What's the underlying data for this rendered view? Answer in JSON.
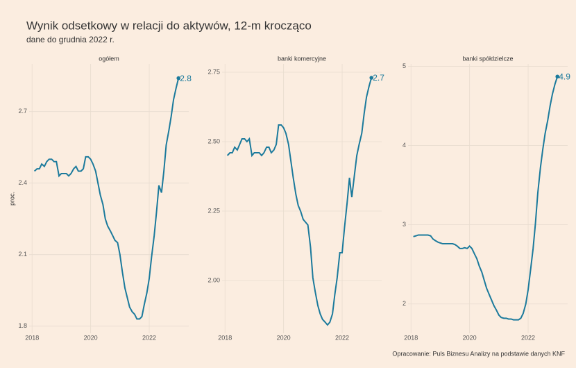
{
  "title": "Wynik odsetkowy w relacji do aktywów, 12-m krocząco",
  "subtitle": "dane do grudnia 2022 r.",
  "y_label": "proc.",
  "caption": "Opracowanie: Puls Biznesu Analizy na podstawie danych KNF",
  "chart_data": [
    {
      "type": "line",
      "title": "ogółem",
      "color": "#1b7a9c",
      "grid": true,
      "x": [
        2018.08,
        2018.17,
        2018.25,
        2018.33,
        2018.42,
        2018.5,
        2018.58,
        2018.67,
        2018.75,
        2018.83,
        2018.92,
        2019,
        2019.08,
        2019.17,
        2019.25,
        2019.33,
        2019.42,
        2019.5,
        2019.58,
        2019.67,
        2019.75,
        2019.83,
        2019.92,
        2020,
        2020.08,
        2020.17,
        2020.25,
        2020.33,
        2020.42,
        2020.5,
        2020.58,
        2020.67,
        2020.75,
        2020.83,
        2020.92,
        2021,
        2021.08,
        2021.17,
        2021.25,
        2021.33,
        2021.42,
        2021.5,
        2021.58,
        2021.67,
        2021.75,
        2021.83,
        2021.92,
        2022,
        2022.08,
        2022.17,
        2022.25,
        2022.33,
        2022.42,
        2022.5,
        2022.58,
        2022.67,
        2022.75,
        2022.83,
        2022.92,
        2023
      ],
      "values": [
        2.45,
        2.46,
        2.46,
        2.48,
        2.47,
        2.49,
        2.5,
        2.5,
        2.49,
        2.49,
        2.43,
        2.44,
        2.44,
        2.44,
        2.43,
        2.44,
        2.46,
        2.47,
        2.45,
        2.45,
        2.46,
        2.51,
        2.51,
        2.5,
        2.48,
        2.45,
        2.4,
        2.35,
        2.31,
        2.25,
        2.22,
        2.2,
        2.18,
        2.16,
        2.15,
        2.1,
        2.03,
        1.96,
        1.92,
        1.88,
        1.86,
        1.85,
        1.83,
        1.83,
        1.84,
        1.89,
        1.94,
        2.0,
        2.09,
        2.18,
        2.28,
        2.39,
        2.36,
        2.45,
        2.56,
        2.62,
        2.68,
        2.75,
        2.8,
        2.84
      ],
      "end_label": "2.8",
      "xlim": [
        2017.9,
        2023.35
      ],
      "xticks": [
        2018,
        2020,
        2022
      ],
      "ylim": [
        1.77,
        2.9
      ],
      "yticks": [
        1.8,
        2.1,
        2.4,
        2.7
      ]
    },
    {
      "type": "line",
      "title": "banki komercyjne",
      "color": "#1b7a9c",
      "grid": true,
      "x": [
        2018.08,
        2018.17,
        2018.25,
        2018.33,
        2018.42,
        2018.5,
        2018.58,
        2018.67,
        2018.75,
        2018.83,
        2018.92,
        2019,
        2019.08,
        2019.17,
        2019.25,
        2019.33,
        2019.42,
        2019.5,
        2019.58,
        2019.67,
        2019.75,
        2019.83,
        2019.92,
        2020,
        2020.08,
        2020.17,
        2020.25,
        2020.33,
        2020.42,
        2020.5,
        2020.58,
        2020.67,
        2020.75,
        2020.83,
        2020.92,
        2021,
        2021.08,
        2021.17,
        2021.25,
        2021.33,
        2021.42,
        2021.5,
        2021.58,
        2021.67,
        2021.75,
        2021.83,
        2021.92,
        2022,
        2022.08,
        2022.17,
        2022.25,
        2022.33,
        2022.42,
        2022.5,
        2022.58,
        2022.67,
        2022.75,
        2022.83,
        2022.92,
        2023
      ],
      "values": [
        2.45,
        2.46,
        2.46,
        2.48,
        2.47,
        2.49,
        2.51,
        2.51,
        2.5,
        2.51,
        2.45,
        2.46,
        2.46,
        2.46,
        2.45,
        2.46,
        2.48,
        2.48,
        2.46,
        2.47,
        2.49,
        2.56,
        2.56,
        2.55,
        2.53,
        2.49,
        2.43,
        2.37,
        2.31,
        2.27,
        2.25,
        2.22,
        2.21,
        2.2,
        2.12,
        2.01,
        1.96,
        1.91,
        1.88,
        1.86,
        1.85,
        1.84,
        1.85,
        1.88,
        1.95,
        2.01,
        2.1,
        2.1,
        2.19,
        2.28,
        2.37,
        2.3,
        2.38,
        2.45,
        2.49,
        2.53,
        2.6,
        2.66,
        2.7,
        2.73
      ],
      "end_label": "2.7",
      "xlim": [
        2017.9,
        2023.35
      ],
      "xticks": [
        2018,
        2020,
        2022
      ],
      "ylim": [
        1.81,
        2.78
      ],
      "yticks": [
        {
          "value": 2,
          "label": "2.00"
        },
        2.25,
        {
          "value": 2.5,
          "label": "2.50"
        },
        2.75
      ]
    },
    {
      "type": "line",
      "title": "banki spółdzielcze",
      "color": "#1b7a9c",
      "grid": true,
      "x": [
        2018.08,
        2018.17,
        2018.25,
        2018.33,
        2018.42,
        2018.5,
        2018.58,
        2018.67,
        2018.75,
        2018.83,
        2018.92,
        2019,
        2019.08,
        2019.17,
        2019.25,
        2019.33,
        2019.42,
        2019.5,
        2019.58,
        2019.67,
        2019.75,
        2019.83,
        2019.92,
        2020,
        2020.08,
        2020.17,
        2020.25,
        2020.33,
        2020.42,
        2020.5,
        2020.58,
        2020.67,
        2020.75,
        2020.83,
        2020.92,
        2021,
        2021.08,
        2021.17,
        2021.25,
        2021.33,
        2021.42,
        2021.5,
        2021.58,
        2021.67,
        2021.75,
        2021.83,
        2021.92,
        2022,
        2022.08,
        2022.17,
        2022.25,
        2022.33,
        2022.42,
        2022.5,
        2022.58,
        2022.67,
        2022.75,
        2022.83,
        2022.92,
        2023
      ],
      "values": [
        2.85,
        2.86,
        2.87,
        2.87,
        2.87,
        2.87,
        2.87,
        2.86,
        2.82,
        2.8,
        2.78,
        2.77,
        2.76,
        2.76,
        2.76,
        2.76,
        2.76,
        2.75,
        2.73,
        2.7,
        2.7,
        2.71,
        2.7,
        2.73,
        2.7,
        2.63,
        2.57,
        2.48,
        2.4,
        2.3,
        2.2,
        2.12,
        2.05,
        1.98,
        1.92,
        1.86,
        1.83,
        1.82,
        1.82,
        1.81,
        1.81,
        1.8,
        1.8,
        1.8,
        1.82,
        1.88,
        2.0,
        2.18,
        2.42,
        2.7,
        3.02,
        3.4,
        3.72,
        3.95,
        4.15,
        4.32,
        4.5,
        4.65,
        4.78,
        4.87
      ],
      "end_label": "4.9",
      "xlim": [
        2017.9,
        2023.35
      ],
      "xticks": [
        2018,
        2020,
        2022
      ],
      "ylim": [
        1.63,
        5.03
      ],
      "yticks": [
        2,
        3,
        4,
        5
      ]
    }
  ]
}
